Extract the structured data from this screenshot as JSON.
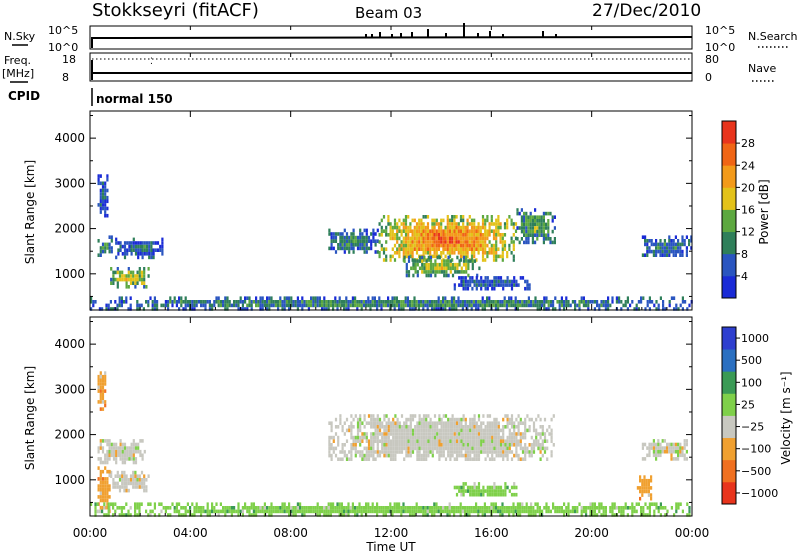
{
  "header": {
    "station": "Stokkseyri (fitACF)",
    "beam": "Beam 03",
    "date": "27/Dec/2010"
  },
  "noise_panel": {
    "left_label": "N.Sky",
    "left_ticks": [
      "10^5",
      "10^0"
    ],
    "right_label": "N.Search",
    "right_ticks": [
      "10^5",
      "10^0"
    ]
  },
  "freq_panel": {
    "left_label_line1": "Freq.",
    "left_label_line2": "[MHz]",
    "left_ticks": [
      "18",
      "8"
    ],
    "right_label": "Nave",
    "right_ticks": [
      "80",
      "0"
    ]
  },
  "cpid_panel": {
    "label": "CPID",
    "mode_text": "normal 150"
  },
  "x_axis": {
    "label": "Time UT",
    "ticks": [
      "00:00",
      "04:00",
      "08:00",
      "12:00",
      "16:00",
      "20:00",
      "00:00"
    ]
  },
  "chart_data": [
    {
      "type": "heatmap",
      "name": "power",
      "ylabel": "Slant Range [km]",
      "yticks": [
        1000,
        2000,
        3000,
        4000
      ],
      "ylim": [
        200,
        4600
      ],
      "xlim_hours": [
        0,
        24
      ],
      "colorbar": {
        "label": "Power [dB]",
        "ticks": [
          "4",
          "8",
          "12",
          "16",
          "20",
          "24",
          "28"
        ],
        "range": [
          0,
          32
        ],
        "colors": [
          "#1a2bd6",
          "#2a55c0",
          "#2f7f5a",
          "#5da840",
          "#e3c21a",
          "#f39a1a",
          "#f06515",
          "#e8341c"
        ]
      },
      "regions": [
        {
          "t0": 0.3,
          "t1": 0.9,
          "r0": 1450,
          "r1": 1850,
          "level": 0.4
        },
        {
          "t0": 0.3,
          "t1": 0.7,
          "r0": 2300,
          "r1": 3200,
          "level": 0.2
        },
        {
          "t0": 1.0,
          "t1": 2.9,
          "r0": 1400,
          "r1": 1800,
          "level": 0.25
        },
        {
          "t0": 0.8,
          "t1": 2.3,
          "r0": 750,
          "r1": 1150,
          "level": 0.6
        },
        {
          "t0": 9.5,
          "t1": 11.5,
          "r0": 1500,
          "r1": 2000,
          "level": 0.3
        },
        {
          "t0": 11.5,
          "t1": 17.0,
          "r0": 1300,
          "r1": 2300,
          "level": 0.78
        },
        {
          "t0": 17.0,
          "t1": 18.5,
          "r0": 1700,
          "r1": 2450,
          "level": 0.4
        },
        {
          "t0": 12.5,
          "t1": 15.5,
          "r0": 1000,
          "r1": 1400,
          "level": 0.5
        },
        {
          "t0": 14.5,
          "t1": 17.5,
          "r0": 700,
          "r1": 950,
          "level": 0.2
        },
        {
          "t0": 22.0,
          "t1": 24.0,
          "r0": 1400,
          "r1": 1850,
          "level": 0.3
        },
        {
          "t0": 0.0,
          "t1": 24.0,
          "r0": 250,
          "r1": 500,
          "level": 0.35
        }
      ]
    },
    {
      "type": "heatmap",
      "name": "velocity",
      "ylabel": "Slant Range [km]",
      "yticks": [
        1000,
        2000,
        3000,
        4000
      ],
      "ylim": [
        200,
        4600
      ],
      "xlim_hours": [
        0,
        24
      ],
      "colorbar": {
        "label": "Velocity [m s⁻¹]",
        "ticks": [
          "1000",
          "500",
          "100",
          "25",
          "−25",
          "−100",
          "−500",
          "−1000"
        ],
        "colors": [
          "#2e3fcf",
          "#2a6fc0",
          "#3a9a55",
          "#7fd04a",
          "#c8c8c0",
          "#f0a030",
          "#f07020",
          "#e8341c"
        ]
      },
      "regions": [
        {
          "t0": 0.3,
          "t1": 2.2,
          "r0": 1400,
          "r1": 1900,
          "cat": 4
        },
        {
          "t0": 0.3,
          "t1": 0.6,
          "r0": 2600,
          "r1": 3400,
          "cat": 5
        },
        {
          "t0": 0.8,
          "t1": 2.3,
          "r0": 800,
          "r1": 1200,
          "cat": 4
        },
        {
          "t0": 0.3,
          "t1": 0.8,
          "r0": 300,
          "r1": 1300,
          "cat": 5
        },
        {
          "t0": 9.5,
          "t1": 18.5,
          "r0": 1450,
          "r1": 2450,
          "cat": 4
        },
        {
          "t0": 14.5,
          "t1": 17.0,
          "r0": 650,
          "r1": 950,
          "cat": 3
        },
        {
          "t0": 22.0,
          "t1": 23.8,
          "r0": 1500,
          "r1": 1900,
          "cat": 4
        },
        {
          "t0": 21.8,
          "t1": 22.4,
          "r0": 600,
          "r1": 1100,
          "cat": 5
        },
        {
          "t0": 0.0,
          "t1": 24.0,
          "r0": 250,
          "r1": 500,
          "cat": 3
        }
      ]
    }
  ]
}
